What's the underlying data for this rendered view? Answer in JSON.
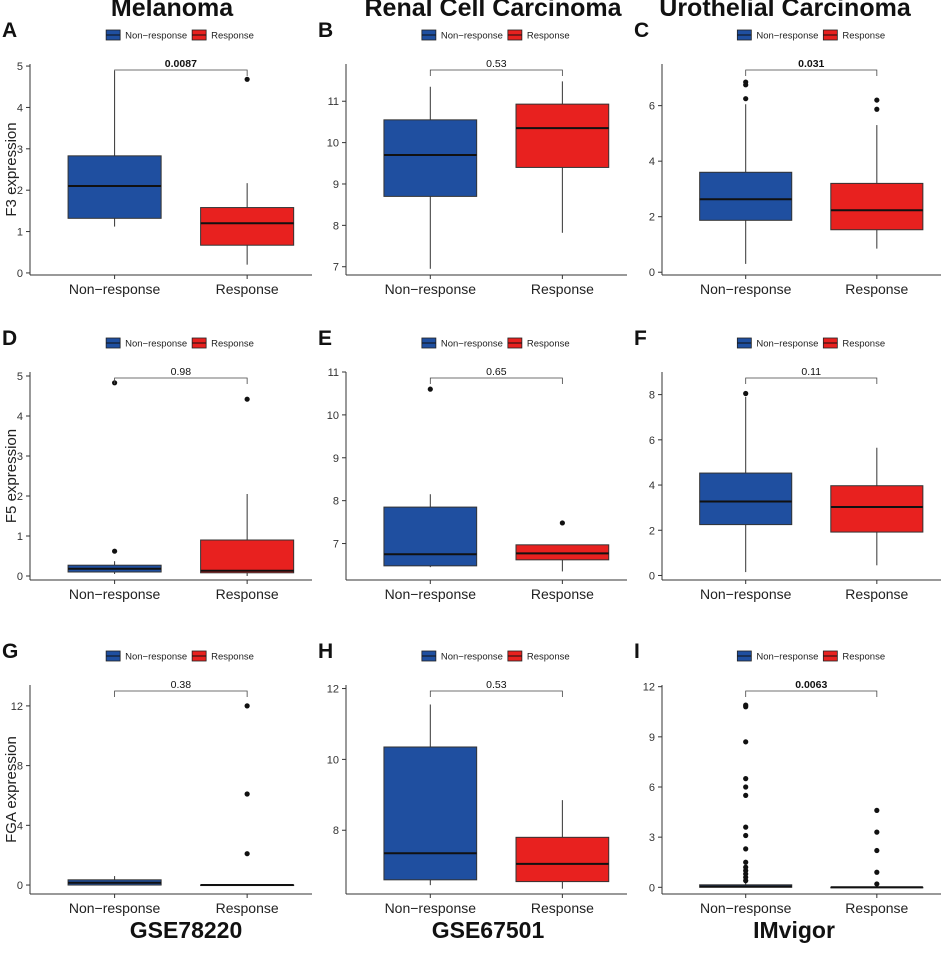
{
  "column_titles": [
    "Melanoma",
    "Renal Cell Carcinoma",
    "Urothelial Carcinoma"
  ],
  "dataset_labels": [
    "GSE78220",
    "GSE67501",
    "IMvigor"
  ],
  "colors": {
    "non_response": "#1f4fa0",
    "response": "#e8211f",
    "axis": "#333333"
  },
  "legend": {
    "non_response": "Non−response",
    "response": "Response"
  },
  "chart_data": [
    {
      "id": "A",
      "type": "box",
      "ylabel": "F3 expression",
      "categories": [
        "Non−response",
        "Response"
      ],
      "ylim": [
        -0.05,
        5.05
      ],
      "yticks": [
        0,
        1,
        2,
        3,
        4,
        5
      ],
      "pvalue": "0.0087",
      "pvalue_bold": true,
      "boxes": [
        {
          "group": "Non−response",
          "q1": 1.32,
          "median": 2.1,
          "q3": 2.83,
          "whisker_low": 1.12,
          "whisker_high": 4.88,
          "outliers": []
        },
        {
          "group": "Response",
          "q1": 0.67,
          "median": 1.2,
          "q3": 1.58,
          "whisker_low": 0.2,
          "whisker_high": 2.17,
          "outliers": [
            4.68
          ]
        }
      ]
    },
    {
      "id": "B",
      "type": "box",
      "ylabel": "",
      "categories": [
        "Non−response",
        "Response"
      ],
      "ylim": [
        6.8,
        11.9
      ],
      "yticks": [
        7,
        8,
        9,
        10,
        11
      ],
      "pvalue": "0.53",
      "pvalue_bold": false,
      "boxes": [
        {
          "group": "Non−response",
          "q1": 8.7,
          "median": 9.7,
          "q3": 10.55,
          "whisker_low": 6.95,
          "whisker_high": 11.35,
          "outliers": []
        },
        {
          "group": "Response",
          "q1": 9.4,
          "median": 10.35,
          "q3": 10.93,
          "whisker_low": 7.82,
          "whisker_high": 11.48,
          "outliers": []
        }
      ]
    },
    {
      "id": "C",
      "type": "box",
      "ylabel": "",
      "categories": [
        "Non−response",
        "Response"
      ],
      "ylim": [
        -0.1,
        7.5
      ],
      "yticks": [
        0,
        2,
        4,
        6
      ],
      "pvalue": "0.031",
      "pvalue_bold": true,
      "boxes": [
        {
          "group": "Non−response",
          "q1": 1.87,
          "median": 2.63,
          "q3": 3.6,
          "whisker_low": 0.3,
          "whisker_high": 6.05,
          "outliers": [
            6.25,
            6.75,
            6.85
          ]
        },
        {
          "group": "Response",
          "q1": 1.53,
          "median": 2.23,
          "q3": 3.2,
          "whisker_low": 0.85,
          "whisker_high": 5.3,
          "outliers": [
            5.87,
            6.2
          ]
        }
      ]
    },
    {
      "id": "D",
      "type": "box",
      "ylabel": "F5 expression",
      "categories": [
        "Non−response",
        "Response"
      ],
      "ylim": [
        -0.1,
        5.1
      ],
      "yticks": [
        0,
        1,
        2,
        3,
        4,
        5
      ],
      "pvalue": "0.98",
      "pvalue_bold": false,
      "boxes": [
        {
          "group": "Non−response",
          "q1": 0.1,
          "median": 0.18,
          "q3": 0.27,
          "whisker_low": 0.05,
          "whisker_high": 0.37,
          "outliers": [
            0.62,
            4.83
          ]
        },
        {
          "group": "Response",
          "q1": 0.08,
          "median": 0.13,
          "q3": 0.9,
          "whisker_low": 0.0,
          "whisker_high": 2.05,
          "outliers": [
            4.42
          ]
        }
      ]
    },
    {
      "id": "E",
      "type": "box",
      "ylabel": "",
      "categories": [
        "Non−response",
        "Response"
      ],
      "ylim": [
        6.15,
        11.0
      ],
      "yticks": [
        7,
        8,
        9,
        10,
        11
      ],
      "pvalue": "0.65",
      "pvalue_bold": false,
      "boxes": [
        {
          "group": "Non−response",
          "q1": 6.48,
          "median": 6.75,
          "q3": 7.85,
          "whisker_low": 6.45,
          "whisker_high": 8.15,
          "outliers": [
            10.6
          ]
        },
        {
          "group": "Response",
          "q1": 6.62,
          "median": 6.77,
          "q3": 6.97,
          "whisker_low": 6.35,
          "whisker_high": 6.97,
          "outliers": [
            7.48
          ]
        }
      ]
    },
    {
      "id": "F",
      "type": "box",
      "ylabel": "",
      "categories": [
        "Non−response",
        "Response"
      ],
      "ylim": [
        -0.2,
        9.0
      ],
      "yticks": [
        0,
        2,
        4,
        6,
        8
      ],
      "pvalue": "0.11",
      "pvalue_bold": false,
      "boxes": [
        {
          "group": "Non−response",
          "q1": 2.25,
          "median": 3.27,
          "q3": 4.53,
          "whisker_low": 0.15,
          "whisker_high": 7.9,
          "outliers": [
            8.05
          ]
        },
        {
          "group": "Response",
          "q1": 1.92,
          "median": 3.03,
          "q3": 3.97,
          "whisker_low": 0.45,
          "whisker_high": 5.65,
          "outliers": []
        }
      ]
    },
    {
      "id": "G",
      "type": "box",
      "ylabel": "FGA expression",
      "categories": [
        "Non−response",
        "Response"
      ],
      "ylim": [
        -0.6,
        13.4
      ],
      "yticks": [
        0,
        4,
        8,
        12
      ],
      "pvalue": "0.38",
      "pvalue_bold": false,
      "boxes": [
        {
          "group": "Non−response",
          "q1": 0.0,
          "median": 0.15,
          "q3": 0.35,
          "whisker_low": 0.0,
          "whisker_high": 0.6,
          "outliers": []
        },
        {
          "group": "Response",
          "q1": 0.0,
          "median": 0.0,
          "q3": 0.0,
          "whisker_low": 0.0,
          "whisker_high": 0.0,
          "outliers": [
            2.1,
            6.1,
            12.0
          ]
        }
      ]
    },
    {
      "id": "H",
      "type": "box",
      "ylabel": "",
      "categories": [
        "Non−response",
        "Response"
      ],
      "ylim": [
        6.2,
        12.1
      ],
      "yticks": [
        8,
        10,
        12
      ],
      "pvalue": "0.53",
      "pvalue_bold": false,
      "boxes": [
        {
          "group": "Non−response",
          "q1": 6.6,
          "median": 7.35,
          "q3": 10.35,
          "whisker_low": 6.45,
          "whisker_high": 11.55,
          "outliers": []
        },
        {
          "group": "Response",
          "q1": 6.55,
          "median": 7.05,
          "q3": 7.8,
          "whisker_low": 6.35,
          "whisker_high": 8.85,
          "outliers": []
        }
      ]
    },
    {
      "id": "I",
      "type": "box",
      "ylabel": "",
      "categories": [
        "Non−response",
        "Response"
      ],
      "ylim": [
        -0.4,
        12.1
      ],
      "yticks": [
        0,
        3,
        6,
        9,
        12
      ],
      "pvalue": "0.0063",
      "pvalue_bold": true,
      "boxes": [
        {
          "group": "Non−response",
          "q1": 0.0,
          "median": 0.05,
          "q3": 0.15,
          "whisker_low": 0.0,
          "whisker_high": 0.3,
          "outliers": [
            0.4,
            0.6,
            0.8,
            1.0,
            1.2,
            1.5,
            2.3,
            3.1,
            3.6,
            5.5,
            6.0,
            6.5,
            8.7,
            10.8,
            10.9
          ]
        },
        {
          "group": "Response",
          "q1": 0.0,
          "median": 0.0,
          "q3": 0.0,
          "whisker_low": 0.0,
          "whisker_high": 0.0,
          "outliers": [
            0.2,
            0.9,
            2.2,
            3.3,
            4.6
          ]
        }
      ]
    }
  ]
}
